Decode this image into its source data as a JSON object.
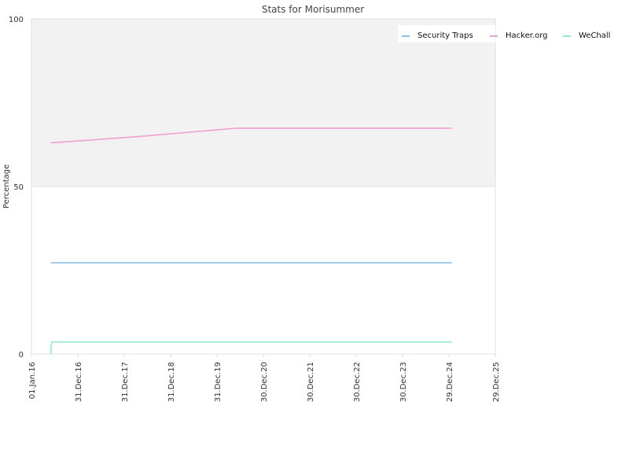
{
  "chart_data": {
    "type": "line",
    "title": "Stats for Morisummer",
    "xlabel": "",
    "ylabel": "Percentage",
    "xlim": [
      "2016-01-01",
      "2025-12-29"
    ],
    "ylim": [
      0,
      100
    ],
    "x_ticks": [
      "01.Jan.16",
      "31.Dec.16",
      "31.Dec.17",
      "31.Dec.18",
      "31.Dec.19",
      "30.Dec.20",
      "30.Dec.21",
      "30.Dec.22",
      "30.Dec.23",
      "29.Dec.24",
      "29.Dec.25"
    ],
    "y_ticks": [
      "0",
      "50",
      "100"
    ],
    "y_tick_values": [
      0,
      50,
      100
    ],
    "upper_band_fill": "#f2f2f2",
    "legend_position": "top-right",
    "series": [
      {
        "name": "Security Traps",
        "color": "#90c0ec",
        "points": [
          [
            "2016-06-01",
            27.2
          ],
          [
            "2025-01-20",
            27.2
          ]
        ]
      },
      {
        "name": "Hacker.org",
        "color": "#f0a0d0",
        "points": [
          [
            "2016-06-01",
            63.0
          ],
          [
            "2017-06-01",
            64.0
          ],
          [
            "2018-06-01",
            65.0
          ],
          [
            "2019-06-01",
            66.2
          ],
          [
            "2020-06-01",
            67.4
          ],
          [
            "2021-06-01",
            67.4
          ],
          [
            "2022-06-01",
            67.4
          ],
          [
            "2023-06-01",
            67.4
          ],
          [
            "2025-01-20",
            67.4
          ]
        ]
      },
      {
        "name": "WeChall",
        "color": "#90e8d0",
        "points": [
          [
            "2016-06-01",
            0.0
          ],
          [
            "2016-06-04",
            2.8
          ],
          [
            "2016-06-10",
            3.6
          ],
          [
            "2025-01-20",
            3.6
          ]
        ]
      }
    ]
  }
}
